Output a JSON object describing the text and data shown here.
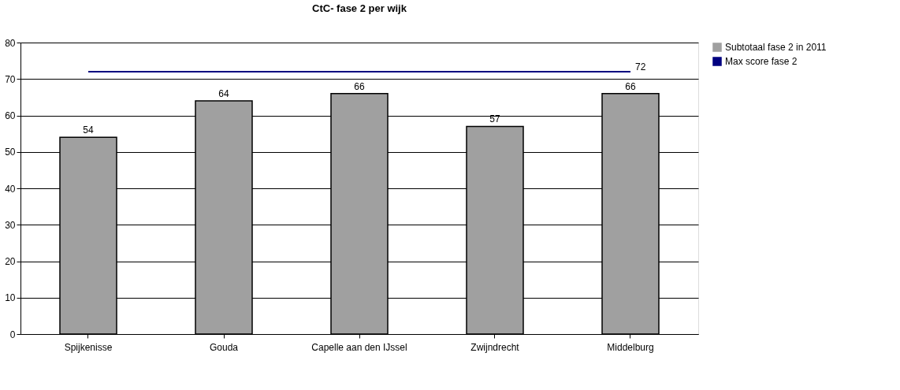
{
  "chart_data": {
    "type": "bar",
    "title": "CtC- fase 2 per wijk",
    "categories": [
      "Spijkenisse",
      "Gouda",
      "Capelle aan den IJssel",
      "Zwijndrecht",
      "Middelburg"
    ],
    "series": [
      {
        "name": "Subtotaal fase 2 in 2011",
        "color": "#a0a0a0",
        "values": [
          54,
          64,
          66,
          57,
          66
        ]
      },
      {
        "name": "Max score fase 2",
        "type": "line",
        "color": "#000080",
        "values": [
          72,
          72,
          72,
          72,
          72
        ],
        "value_labels": [
          null,
          null,
          null,
          null,
          "72"
        ]
      }
    ],
    "data_labels": true,
    "ylim": [
      0,
      80
    ],
    "yticks": [
      0,
      10,
      20,
      30,
      40,
      50,
      60,
      70,
      80
    ],
    "grid": "y",
    "legend": "right",
    "marker": "none",
    "line_style": "solid"
  }
}
